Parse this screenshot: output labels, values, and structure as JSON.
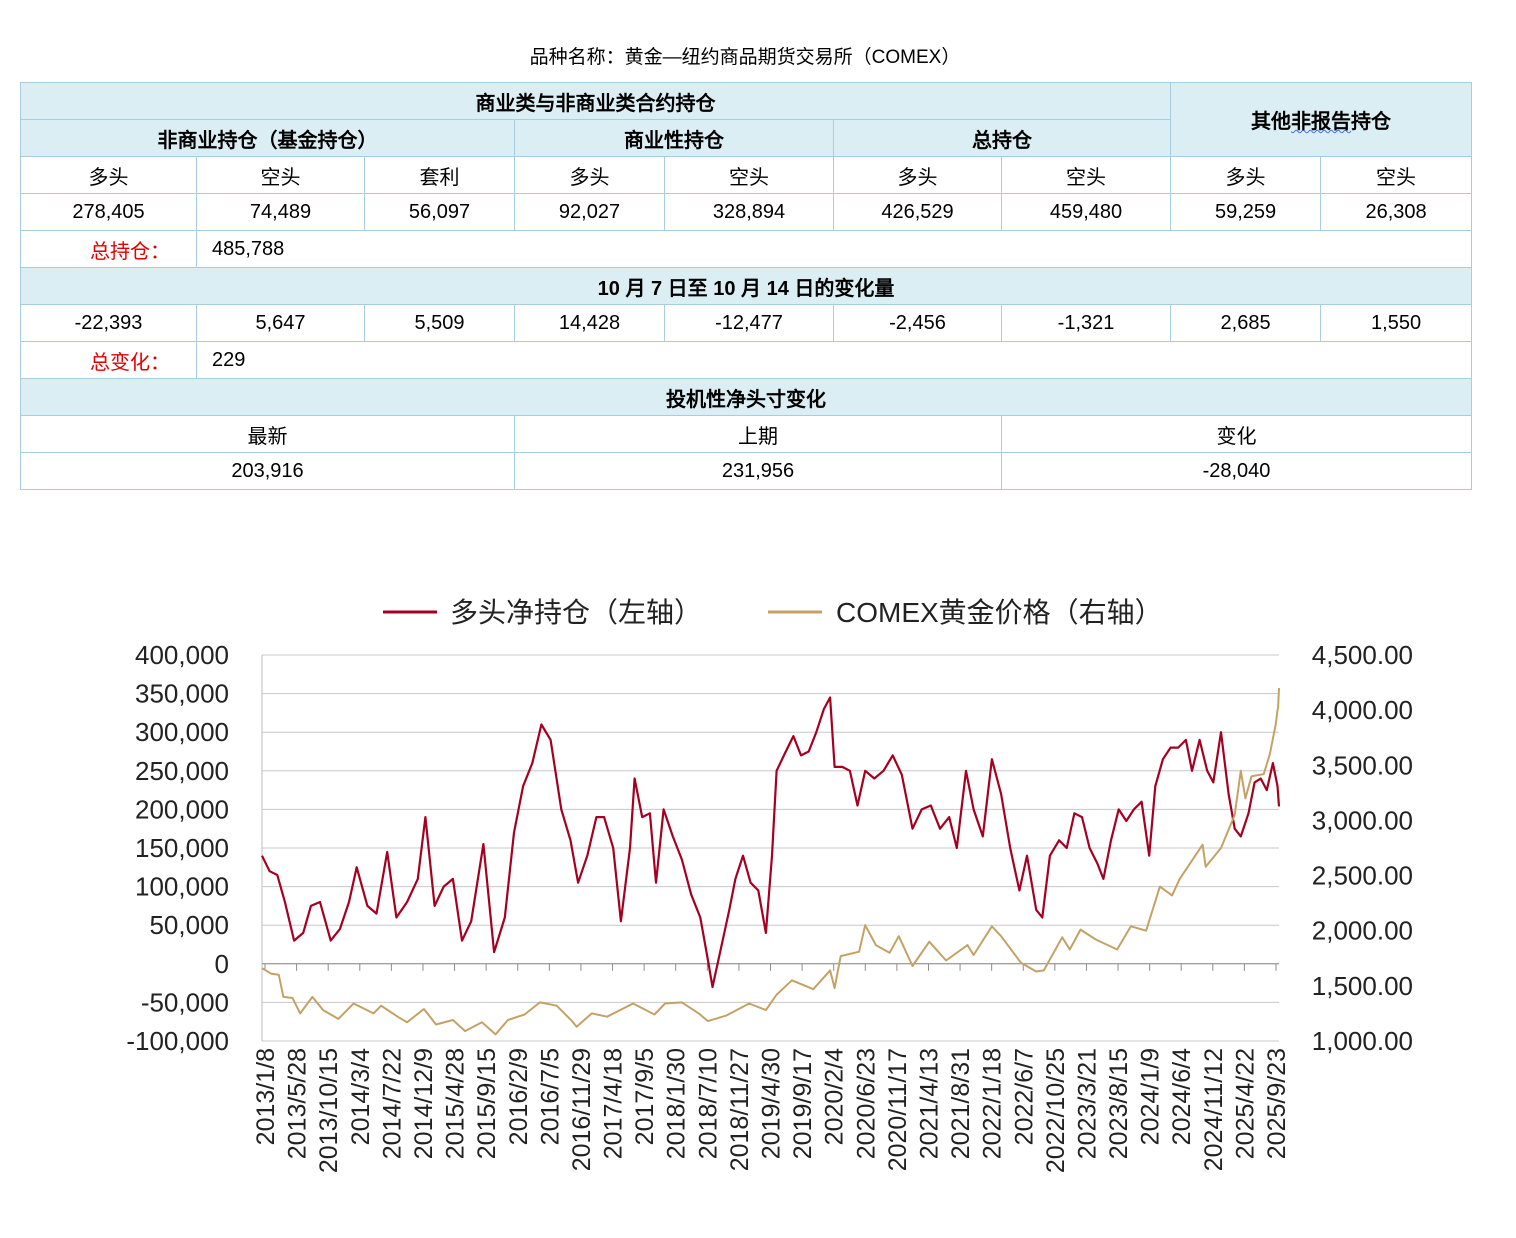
{
  "header": {
    "title": "品种名称：黄金—纽约商品期货交易所（COMEX）"
  },
  "table": {
    "group_title": "商业类与非商业类合约持仓",
    "other_title_pre": "其他",
    "other_title_mid": "非报告",
    "other_title_post": "持仓",
    "sub_headers": {
      "noncommercial": "非商业持仓（基金持仓）",
      "commercial": "商业性持仓",
      "total": "总持仓"
    },
    "col_labels": [
      "多头",
      "空头",
      "套利",
      "多头",
      "空头",
      "多头",
      "空头",
      "多头",
      "空头"
    ],
    "values": [
      "278,405",
      "74,489",
      "56,097",
      "92,027",
      "328,894",
      "426,529",
      "459,480",
      "59,259",
      "26,308"
    ],
    "total_oi_label": "总持仓：",
    "total_oi_value": "485,788",
    "change_title": "10 月 7 日至 10 月 14 日的变化量",
    "changes": [
      "-22,393",
      "5,647",
      "5,509",
      "14,428",
      "-12,477",
      "-2,456",
      "-1,321",
      "2,685",
      "1,550"
    ],
    "total_change_label": "总变化：",
    "total_change_value": "229",
    "net_title": "投机性净头寸变化",
    "net_labels": [
      "最新",
      "上期",
      "变化"
    ],
    "net_values": [
      "203,916",
      "231,956",
      "-28,040"
    ]
  },
  "chart_data": {
    "type": "line",
    "title": "",
    "legend_position": "top",
    "y_left": {
      "min": -100000,
      "max": 400000,
      "step": 50000,
      "ticks": [
        "-100,000",
        "-50,000",
        "0",
        "50,000",
        "100,000",
        "150,000",
        "200,000",
        "250,000",
        "300,000",
        "350,000",
        "400,000"
      ]
    },
    "y_right": {
      "min": 1000,
      "max": 4500,
      "step": 500,
      "ticks": [
        "1,000.00",
        "1,500.00",
        "2,000.00",
        "2,500.00",
        "3,000.00",
        "3,500.00",
        "4,000.00",
        "4,500.00"
      ]
    },
    "x_range": [
      "2013-01-08",
      "2025-10-14"
    ],
    "x_ticks": [
      "2013/1/8",
      "2013/5/28",
      "2013/10/15",
      "2014/3/4",
      "2014/7/22",
      "2014/12/9",
      "2015/4/28",
      "2015/9/15",
      "2016/2/9",
      "2016/7/5",
      "2016/11/29",
      "2017/4/18",
      "2017/9/5",
      "2018/1/30",
      "2018/7/10",
      "2018/11/27",
      "2019/4/30",
      "2019/9/17",
      "2020/2/4",
      "2020/6/23",
      "2020/11/17",
      "2021/4/13",
      "2021/8/31",
      "2022/1/18",
      "2022/6/7",
      "2022/10/25",
      "2023/3/21",
      "2023/8/15",
      "2024/1/9",
      "2024/6/4",
      "2024/11/12",
      "2025/4/22",
      "2025/9/23"
    ],
    "series": [
      {
        "name": "多头净持仓（左轴）",
        "axis": "left",
        "color": "#a50021",
        "points": [
          [
            "2013-01-08",
            140000
          ],
          [
            "2013-02-12",
            120000
          ],
          [
            "2013-03-19",
            115000
          ],
          [
            "2013-04-23",
            80000
          ],
          [
            "2013-06-04",
            30000
          ],
          [
            "2013-07-16",
            40000
          ],
          [
            "2013-08-20",
            75000
          ],
          [
            "2013-10-01",
            80000
          ],
          [
            "2013-11-19",
            30000
          ],
          [
            "2013-12-31",
            45000
          ],
          [
            "2014-02-11",
            80000
          ],
          [
            "2014-03-18",
            125000
          ],
          [
            "2014-05-06",
            75000
          ],
          [
            "2014-06-17",
            65000
          ],
          [
            "2014-08-05",
            145000
          ],
          [
            "2014-09-16",
            60000
          ],
          [
            "2014-11-04",
            80000
          ],
          [
            "2014-12-23",
            110000
          ],
          [
            "2015-01-27",
            190000
          ],
          [
            "2015-03-10",
            75000
          ],
          [
            "2015-04-21",
            100000
          ],
          [
            "2015-06-02",
            110000
          ],
          [
            "2015-07-14",
            30000
          ],
          [
            "2015-08-25",
            55000
          ],
          [
            "2015-10-20",
            155000
          ],
          [
            "2015-12-08",
            15000
          ],
          [
            "2016-01-26",
            60000
          ],
          [
            "2016-03-08",
            170000
          ],
          [
            "2016-04-19",
            230000
          ],
          [
            "2016-05-31",
            260000
          ],
          [
            "2016-07-12",
            310000
          ],
          [
            "2016-08-23",
            290000
          ],
          [
            "2016-10-11",
            200000
          ],
          [
            "2016-11-22",
            160000
          ],
          [
            "2016-12-27",
            105000
          ],
          [
            "2017-02-07",
            140000
          ],
          [
            "2017-03-21",
            190000
          ],
          [
            "2017-04-25",
            190000
          ],
          [
            "2017-06-06",
            150000
          ],
          [
            "2017-07-11",
            55000
          ],
          [
            "2017-08-22",
            150000
          ],
          [
            "2017-09-12",
            240000
          ],
          [
            "2017-10-17",
            190000
          ],
          [
            "2017-11-21",
            195000
          ],
          [
            "2017-12-19",
            105000
          ],
          [
            "2018-01-23",
            200000
          ],
          [
            "2018-03-06",
            165000
          ],
          [
            "2018-04-17",
            135000
          ],
          [
            "2018-05-29",
            90000
          ],
          [
            "2018-07-10",
            60000
          ],
          [
            "2018-08-14",
            5000
          ],
          [
            "2018-09-04",
            -30000
          ],
          [
            "2018-10-09",
            15000
          ],
          [
            "2018-11-20",
            70000
          ],
          [
            "2018-12-18",
            110000
          ],
          [
            "2019-01-22",
            140000
          ],
          [
            "2019-02-26",
            105000
          ],
          [
            "2019-04-02",
            95000
          ],
          [
            "2019-05-07",
            40000
          ],
          [
            "2019-06-04",
            140000
          ],
          [
            "2019-06-25",
            250000
          ],
          [
            "2019-08-06",
            275000
          ],
          [
            "2019-09-10",
            295000
          ],
          [
            "2019-10-15",
            270000
          ],
          [
            "2019-11-19",
            275000
          ],
          [
            "2019-12-24",
            300000
          ],
          [
            "2020-01-28",
            330000
          ],
          [
            "2020-02-25",
            345000
          ],
          [
            "2020-03-17",
            255000
          ],
          [
            "2020-04-21",
            255000
          ],
          [
            "2020-05-26",
            250000
          ],
          [
            "2020-06-30",
            205000
          ],
          [
            "2020-08-04",
            250000
          ],
          [
            "2020-09-15",
            240000
          ],
          [
            "2020-10-27",
            250000
          ],
          [
            "2020-12-08",
            270000
          ],
          [
            "2021-01-19",
            245000
          ],
          [
            "2021-03-09",
            175000
          ],
          [
            "2021-04-20",
            200000
          ],
          [
            "2021-06-01",
            205000
          ],
          [
            "2021-07-13",
            175000
          ],
          [
            "2021-08-24",
            190000
          ],
          [
            "2021-09-28",
            150000
          ],
          [
            "2021-11-09",
            250000
          ],
          [
            "2021-12-14",
            200000
          ],
          [
            "2022-01-25",
            165000
          ],
          [
            "2022-03-08",
            265000
          ],
          [
            "2022-04-19",
            220000
          ],
          [
            "2022-05-31",
            150000
          ],
          [
            "2022-07-12",
            95000
          ],
          [
            "2022-08-16",
            140000
          ],
          [
            "2022-09-27",
            70000
          ],
          [
            "2022-10-25",
            60000
          ],
          [
            "2022-11-29",
            140000
          ],
          [
            "2023-01-10",
            160000
          ],
          [
            "2023-02-14",
            150000
          ],
          [
            "2023-03-21",
            195000
          ],
          [
            "2023-04-25",
            190000
          ],
          [
            "2023-05-30",
            150000
          ],
          [
            "2023-07-04",
            130000
          ],
          [
            "2023-08-01",
            110000
          ],
          [
            "2023-09-05",
            160000
          ],
          [
            "2023-10-10",
            200000
          ],
          [
            "2023-11-14",
            185000
          ],
          [
            "2023-12-19",
            200000
          ],
          [
            "2024-01-23",
            210000
          ],
          [
            "2024-02-27",
            140000
          ],
          [
            "2024-03-26",
            230000
          ],
          [
            "2024-04-30",
            265000
          ],
          [
            "2024-06-04",
            280000
          ],
          [
            "2024-07-09",
            280000
          ],
          [
            "2024-08-13",
            290000
          ],
          [
            "2024-09-10",
            250000
          ],
          [
            "2024-10-15",
            290000
          ],
          [
            "2024-11-19",
            250000
          ],
          [
            "2024-12-17",
            235000
          ],
          [
            "2025-01-21",
            300000
          ],
          [
            "2025-02-25",
            220000
          ],
          [
            "2025-03-25",
            175000
          ],
          [
            "2025-04-22",
            165000
          ],
          [
            "2025-05-27",
            195000
          ],
          [
            "2025-06-24",
            235000
          ],
          [
            "2025-07-22",
            240000
          ],
          [
            "2025-08-19",
            225000
          ],
          [
            "2025-09-16",
            260000
          ],
          [
            "2025-10-07",
            230000
          ],
          [
            "2025-10-14",
            203916
          ]
        ]
      },
      {
        "name": "COMEX黄金价格（右轴）",
        "axis": "right",
        "color": "#c4a266",
        "points": [
          [
            "2013-01-08",
            1660
          ],
          [
            "2013-02-19",
            1610
          ],
          [
            "2013-03-26",
            1600
          ],
          [
            "2013-04-16",
            1400
          ],
          [
            "2013-05-28",
            1390
          ],
          [
            "2013-07-02",
            1250
          ],
          [
            "2013-08-27",
            1400
          ],
          [
            "2013-10-15",
            1280
          ],
          [
            "2013-12-24",
            1200
          ],
          [
            "2014-03-04",
            1340
          ],
          [
            "2014-06-03",
            1250
          ],
          [
            "2014-07-08",
            1320
          ],
          [
            "2014-09-30",
            1210
          ],
          [
            "2014-11-04",
            1170
          ],
          [
            "2015-01-20",
            1290
          ],
          [
            "2015-03-17",
            1150
          ],
          [
            "2015-06-02",
            1190
          ],
          [
            "2015-07-28",
            1090
          ],
          [
            "2015-10-13",
            1170
          ],
          [
            "2015-12-15",
            1060
          ],
          [
            "2016-02-09",
            1190
          ],
          [
            "2016-04-26",
            1240
          ],
          [
            "2016-07-05",
            1350
          ],
          [
            "2016-09-20",
            1320
          ],
          [
            "2016-11-29",
            1180
          ],
          [
            "2016-12-20",
            1130
          ],
          [
            "2017-02-28",
            1250
          ],
          [
            "2017-05-09",
            1220
          ],
          [
            "2017-09-05",
            1340
          ],
          [
            "2017-12-12",
            1240
          ],
          [
            "2018-01-30",
            1340
          ],
          [
            "2018-04-17",
            1350
          ],
          [
            "2018-07-03",
            1250
          ],
          [
            "2018-08-14",
            1180
          ],
          [
            "2018-11-06",
            1230
          ],
          [
            "2019-02-19",
            1340
          ],
          [
            "2019-05-07",
            1280
          ],
          [
            "2019-06-25",
            1420
          ],
          [
            "2019-09-03",
            1550
          ],
          [
            "2019-12-10",
            1470
          ],
          [
            "2020-02-25",
            1640
          ],
          [
            "2020-03-17",
            1480
          ],
          [
            "2020-04-14",
            1770
          ],
          [
            "2020-07-07",
            1810
          ],
          [
            "2020-08-04",
            2050
          ],
          [
            "2020-09-22",
            1870
          ],
          [
            "2020-11-24",
            1800
          ],
          [
            "2021-01-05",
            1950
          ],
          [
            "2021-03-09",
            1680
          ],
          [
            "2021-05-25",
            1900
          ],
          [
            "2021-08-10",
            1730
          ],
          [
            "2021-11-16",
            1870
          ],
          [
            "2021-12-14",
            1780
          ],
          [
            "2022-03-08",
            2040
          ],
          [
            "2022-04-19",
            1950
          ],
          [
            "2022-07-19",
            1710
          ],
          [
            "2022-09-27",
            1630
          ],
          [
            "2022-11-01",
            1640
          ],
          [
            "2023-01-24",
            1940
          ],
          [
            "2023-02-28",
            1830
          ],
          [
            "2023-04-18",
            2010
          ],
          [
            "2023-06-27",
            1920
          ],
          [
            "2023-10-03",
            1830
          ],
          [
            "2023-12-05",
            2040
          ],
          [
            "2024-02-13",
            2000
          ],
          [
            "2024-04-16",
            2400
          ],
          [
            "2024-06-11",
            2320
          ],
          [
            "2024-07-16",
            2470
          ],
          [
            "2024-10-29",
            2780
          ],
          [
            "2024-11-12",
            2580
          ],
          [
            "2025-01-21",
            2750
          ],
          [
            "2025-03-25",
            3050
          ],
          [
            "2025-04-22",
            3450
          ],
          [
            "2025-05-13",
            3200
          ],
          [
            "2025-06-10",
            3400
          ],
          [
            "2025-08-05",
            3420
          ],
          [
            "2025-09-02",
            3600
          ],
          [
            "2025-09-30",
            3880
          ],
          [
            "2025-10-07",
            4000
          ],
          [
            "2025-10-10",
            4020
          ],
          [
            "2025-10-14",
            4200
          ]
        ]
      }
    ]
  }
}
